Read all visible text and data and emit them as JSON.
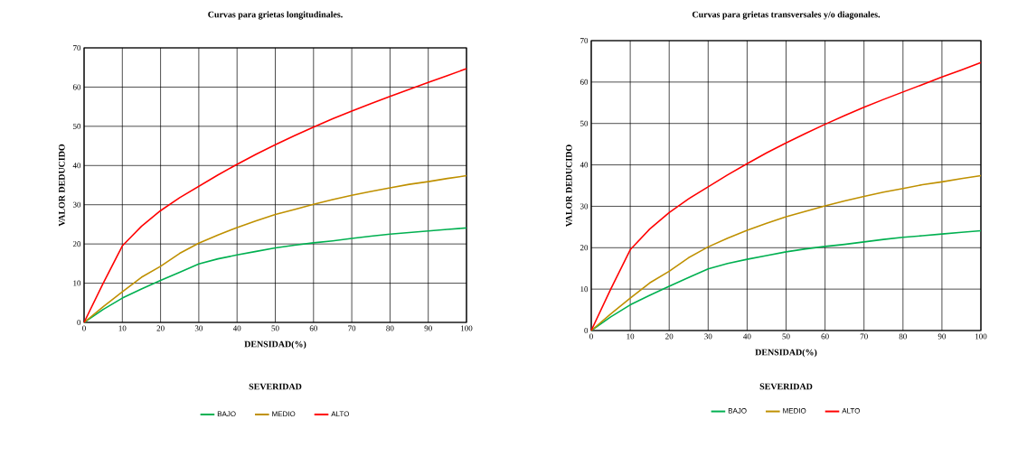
{
  "chart_data": [
    {
      "type": "line",
      "title": "Curvas para grietas longitudinales.",
      "xlabel": "DENSIDAD(%)",
      "ylabel": "VALOR DEDUCIDO",
      "legend_title": "SEVERIDAD",
      "x": [
        0,
        5,
        10,
        15,
        20,
        25,
        30,
        35,
        40,
        45,
        50,
        55,
        60,
        65,
        70,
        75,
        80,
        85,
        90,
        95,
        100
      ],
      "series": [
        {
          "name": "BAJO",
          "color": "#00b050",
          "values": [
            0,
            3.3,
            6.2,
            8.5,
            10.7,
            12.8,
            14.9,
            16.2,
            17.2,
            18.1,
            19.0,
            19.7,
            20.3,
            20.8,
            21.4,
            22.0,
            22.5,
            22.9,
            23.3,
            23.7,
            24.1
          ]
        },
        {
          "name": "MEDIO",
          "color": "#bf9000",
          "values": [
            0,
            4,
            7.8,
            11.5,
            14.3,
            17.6,
            20.2,
            22.3,
            24.2,
            25.9,
            27.5,
            28.8,
            30.1,
            31.3,
            32.4,
            33.4,
            34.3,
            35.2,
            35.9,
            36.7,
            37.4
          ]
        },
        {
          "name": "ALTO",
          "color": "#ff0000",
          "values": [
            0,
            10,
            19.5,
            24.5,
            28.5,
            31.8,
            34.7,
            37.6,
            40.3,
            42.9,
            45.3,
            47.6,
            49.8,
            51.9,
            53.9,
            55.8,
            57.6,
            59.4,
            61.2,
            62.9,
            64.7
          ]
        }
      ],
      "xlim": [
        0,
        100
      ],
      "ylim": [
        0,
        70
      ],
      "xticks": [
        0,
        10,
        20,
        30,
        40,
        50,
        60,
        70,
        80,
        90,
        100
      ],
      "yticks": [
        0,
        10,
        20,
        30,
        40,
        50,
        60,
        70
      ],
      "grid": true,
      "legend": "bottom",
      "marker": "none",
      "line_style": "solid"
    },
    {
      "type": "line",
      "title": "Curvas para grietas transversales y/o diagonales.",
      "xlabel": "DENSIDAD(%)",
      "ylabel": "VALOR DEDUCIDO",
      "legend_title": "SEVERIDAD",
      "x": [
        0,
        5,
        10,
        15,
        20,
        25,
        30,
        35,
        40,
        45,
        50,
        55,
        60,
        65,
        70,
        75,
        80,
        85,
        90,
        95,
        100
      ],
      "series": [
        {
          "name": "BAJO",
          "color": "#00b050",
          "values": [
            0,
            3.3,
            6.2,
            8.5,
            10.7,
            12.8,
            14.9,
            16.2,
            17.2,
            18.1,
            19.0,
            19.7,
            20.3,
            20.8,
            21.4,
            22.0,
            22.5,
            22.9,
            23.3,
            23.7,
            24.1
          ]
        },
        {
          "name": "MEDIO",
          "color": "#bf9000",
          "values": [
            0,
            4,
            7.8,
            11.5,
            14.3,
            17.6,
            20.2,
            22.3,
            24.2,
            25.9,
            27.5,
            28.8,
            30.1,
            31.3,
            32.4,
            33.4,
            34.3,
            35.2,
            35.9,
            36.7,
            37.4
          ]
        },
        {
          "name": "ALTO",
          "color": "#ff0000",
          "values": [
            0,
            10,
            19.5,
            24.5,
            28.5,
            31.8,
            34.7,
            37.6,
            40.3,
            42.9,
            45.3,
            47.6,
            49.8,
            51.9,
            53.9,
            55.8,
            57.6,
            59.4,
            61.2,
            62.9,
            64.7
          ]
        }
      ],
      "xlim": [
        0,
        100
      ],
      "ylim": [
        0,
        70
      ],
      "xticks": [
        0,
        10,
        20,
        30,
        40,
        50,
        60,
        70,
        80,
        90,
        100
      ],
      "yticks": [
        0,
        10,
        20,
        30,
        40,
        50,
        60,
        70
      ],
      "grid": true,
      "legend": "bottom",
      "marker": "none",
      "line_style": "solid"
    }
  ]
}
